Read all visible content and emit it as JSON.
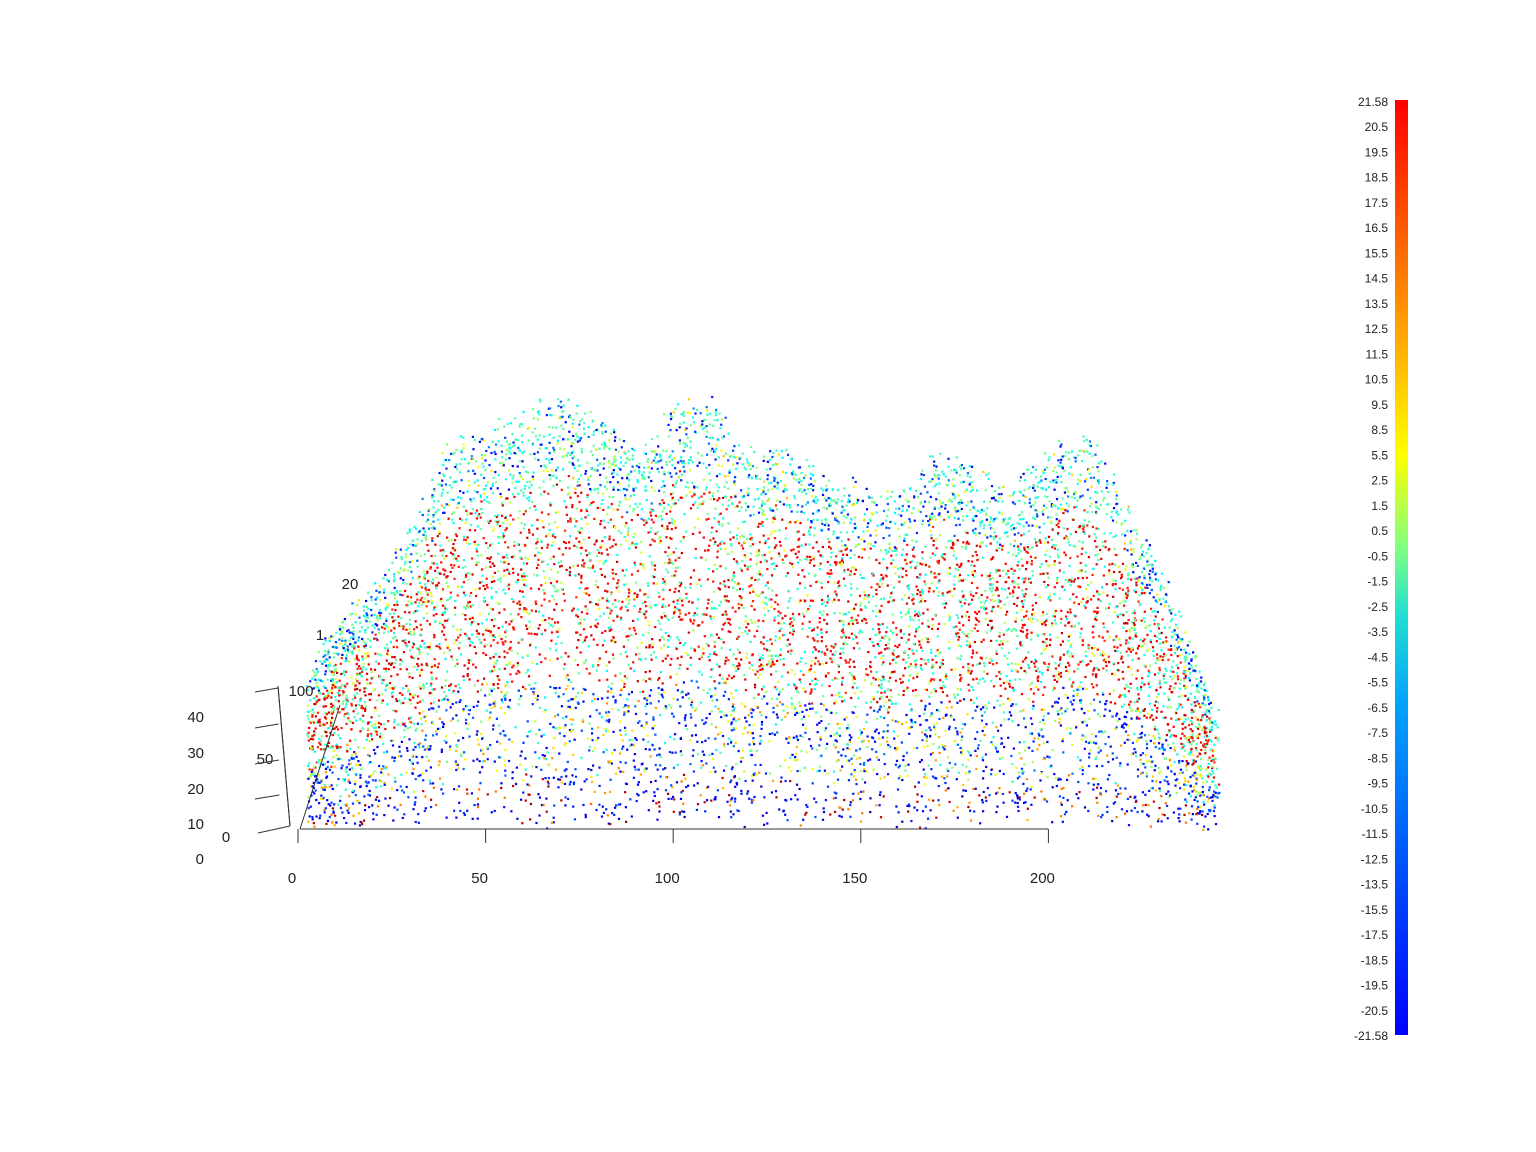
{
  "chart_data": {
    "type": "scatter",
    "title": "",
    "xlabel": "",
    "ylabel": "",
    "zlabel": "",
    "view": "3d-perspective",
    "grid": false,
    "description_free": true,
    "x_axis": {
      "ticks": [
        0,
        50,
        100,
        150,
        200
      ],
      "range": [
        0,
        250
      ]
    },
    "y_axis": {
      "ticks": [
        0,
        50,
        100
      ],
      "range": [
        0,
        100
      ]
    },
    "z_axis": {
      "ticks": [
        0,
        10,
        20,
        30,
        40
      ],
      "range": [
        0,
        40
      ]
    },
    "partial_labels": [
      "20",
      "1"
    ],
    "colorbar": {
      "placement": "right",
      "colormap": "jet",
      "min": -21.58,
      "max": 21.58,
      "ticks": [
        "21.58",
        "20.5",
        "19.5",
        "18.5",
        "17.5",
        "16.5",
        "15.5",
        "14.5",
        "13.5",
        "12.5",
        "11.5",
        "10.5",
        "9.5",
        "8.5",
        "5.5",
        "2.5",
        "1.5",
        "0.5",
        "-0.5",
        "-1.5",
        "-2.5",
        "-3.5",
        "-4.5",
        "-5.5",
        "-6.5",
        "-7.5",
        "-8.5",
        "-9.5",
        "-10.5",
        "-11.5",
        "-12.5",
        "-13.5",
        "-15.5",
        "-17.5",
        "-18.5",
        "-19.5",
        "-20.5",
        "-21.58"
      ]
    },
    "canopy_top_profile": {
      "x": [
        2,
        10,
        20,
        30,
        40,
        50,
        60,
        70,
        80,
        90,
        100,
        110,
        120,
        130,
        140,
        150,
        160,
        170,
        180,
        190,
        200,
        210,
        220,
        230,
        245
      ],
      "z": [
        14,
        19,
        22,
        28,
        36,
        37,
        39,
        40,
        38,
        35,
        40,
        40,
        35,
        36,
        33,
        32,
        31,
        35,
        33,
        32,
        35,
        37,
        31,
        24,
        10
      ]
    }
  }
}
